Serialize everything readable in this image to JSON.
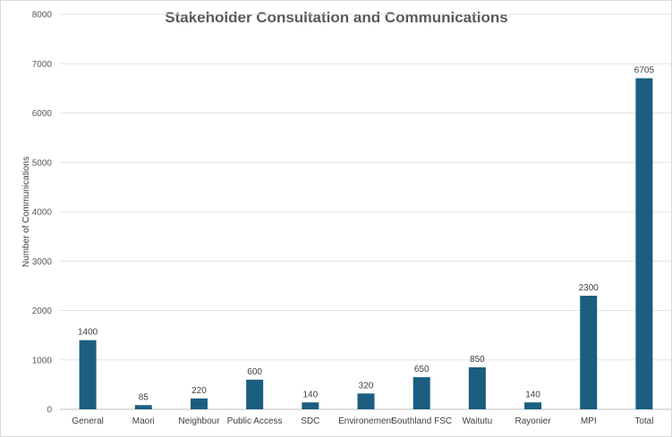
{
  "chart_data": {
    "type": "bar",
    "title": "Stakeholder Consultation and Communications",
    "xlabel": "",
    "ylabel": "Number of Communications",
    "ylim": [
      0,
      8000
    ],
    "yticks": [
      0,
      1000,
      2000,
      3000,
      4000,
      5000,
      6000,
      7000,
      8000
    ],
    "grid": true,
    "categories": [
      "General",
      "Maori",
      "Neighbour",
      "Public Access",
      "SDC",
      "Environement",
      "Southland FSC",
      "Waitutu",
      "Rayonier",
      "MPI",
      "Total"
    ],
    "values": [
      1400,
      85,
      220,
      600,
      140,
      320,
      650,
      850,
      140,
      2300,
      6705
    ],
    "bar_color": "#1b5e80"
  }
}
